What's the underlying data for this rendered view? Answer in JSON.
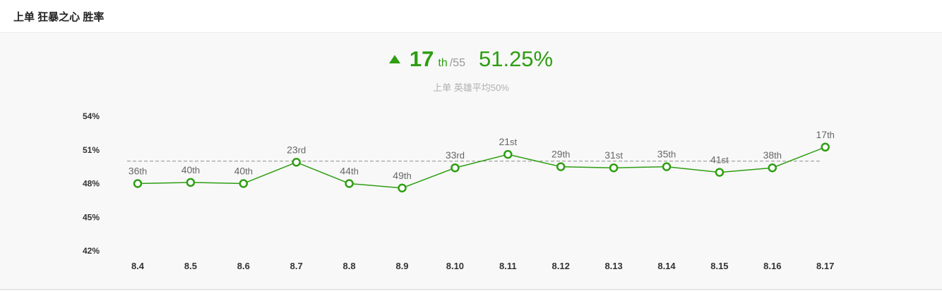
{
  "header": {
    "title": "上单 狂暴之心 胜率"
  },
  "summary": {
    "trend_icon": "triangle-up-icon",
    "rank": "17",
    "rank_suffix": "th",
    "rank_total": "/55",
    "winrate": "51.25%",
    "subtitle": "上单 英雄平均50%",
    "accent_color": "#2e9e12"
  },
  "chart_data": {
    "type": "line",
    "ylim": [
      42,
      54
    ],
    "yticks": [
      "54%",
      "51%",
      "48%",
      "45%",
      "42%"
    ],
    "average": 50,
    "categories": [
      "8.4",
      "8.5",
      "8.6",
      "8.7",
      "8.8",
      "8.9",
      "8.10",
      "8.11",
      "8.12",
      "8.13",
      "8.14",
      "8.15",
      "8.16",
      "8.17"
    ],
    "series": [
      {
        "values": [
          48.0,
          48.1,
          48.0,
          49.9,
          48.0,
          47.6,
          49.4,
          50.6,
          49.5,
          49.4,
          49.5,
          49.0,
          49.4,
          51.25
        ],
        "ranks": [
          {
            "num": "36",
            "suffix": "th"
          },
          {
            "num": "40",
            "suffix": "th"
          },
          {
            "num": "40",
            "suffix": "th"
          },
          {
            "num": "23",
            "suffix": "rd"
          },
          {
            "num": "44",
            "suffix": "th"
          },
          {
            "num": "49",
            "suffix": "th"
          },
          {
            "num": "33",
            "suffix": "rd"
          },
          {
            "num": "21",
            "suffix": "st"
          },
          {
            "num": "29",
            "suffix": "th"
          },
          {
            "num": "31",
            "suffix": "st"
          },
          {
            "num": "35",
            "suffix": "th"
          },
          {
            "num": "41",
            "suffix": "st"
          },
          {
            "num": "38",
            "suffix": "th"
          },
          {
            "num": "17",
            "suffix": "th"
          }
        ]
      }
    ],
    "line_color": "#2e9e12",
    "average_line_color": "#999999"
  }
}
